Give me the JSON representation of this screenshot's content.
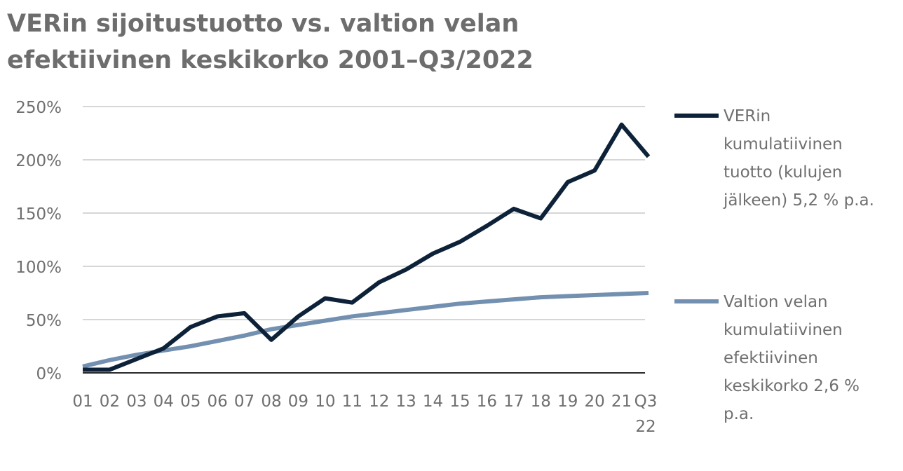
{
  "chart_data": {
    "type": "line",
    "title": "VERin sijoitustuotto vs. valtion velan efektiivinen keskikorko 2001–Q3/2022",
    "xlabel": "",
    "ylabel": "",
    "categories": [
      "01",
      "02",
      "03",
      "04",
      "05",
      "06",
      "07",
      "08",
      "09",
      "10",
      "11",
      "12",
      "13",
      "14",
      "15",
      "16",
      "17",
      "18",
      "19",
      "20",
      "21",
      "Q3 22"
    ],
    "y_tick_labels": [
      "0%",
      "50%",
      "100%",
      "150%",
      "200%",
      "250%"
    ],
    "y_ticks": [
      0,
      50,
      100,
      150,
      200,
      250
    ],
    "ylim": [
      0,
      250
    ],
    "grid": true,
    "legend_position": "right",
    "series": [
      {
        "name": "VERin kumulatiivinen tuotto (kulujen jälkeen) 5,2 % p.a.",
        "legend_lines": [
          "VERin",
          "kumulatiivinen",
          "tuotto (kulujen",
          "jälkeen) 5,2 % p.a."
        ],
        "color": "#0d2238",
        "values": [
          3,
          3,
          13,
          23,
          43,
          53,
          56,
          31,
          53,
          70,
          66,
          85,
          97,
          112,
          123,
          138,
          154,
          145,
          179,
          190,
          233,
          203
        ]
      },
      {
        "name": "Valtion velan kumulatiivinen efektiivinen keskikorko 2,6 % p.a.",
        "legend_lines": [
          "Valtion velan",
          "kumulatiivinen",
          "efektiivinen",
          "keskikorko 2,6 %",
          "p.a."
        ],
        "color": "#7390b1",
        "values": [
          6,
          12,
          17,
          21,
          25,
          30,
          35,
          41,
          45,
          49,
          53,
          56,
          59,
          62,
          65,
          67,
          69,
          71,
          72,
          73,
          74,
          75
        ]
      }
    ]
  }
}
